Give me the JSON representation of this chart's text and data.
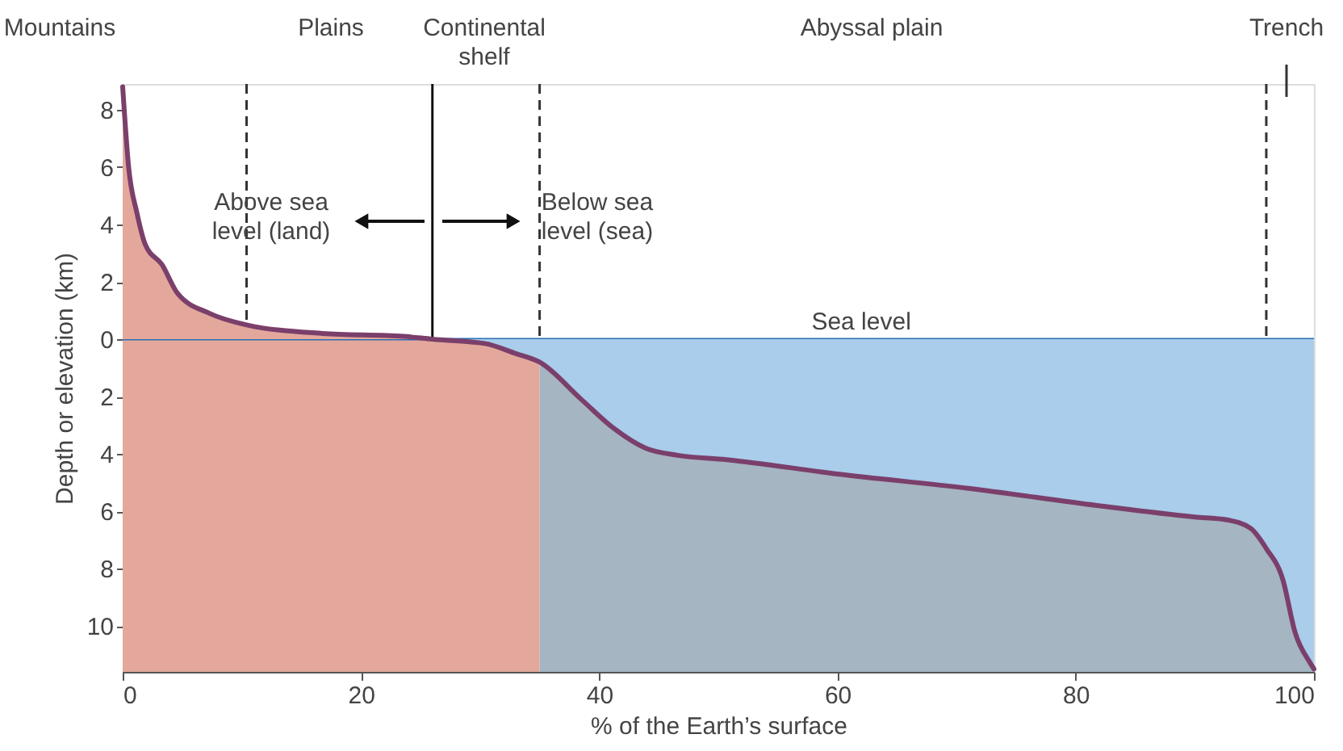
{
  "chart_data": {
    "type": "area",
    "xlabel": "% of the Earth’s surface",
    "ylabel": "Depth or elevation (km)",
    "xlim": [
      0,
      100
    ],
    "xticks": [
      0,
      20,
      40,
      60,
      80,
      100
    ],
    "ylim": [
      -11.6,
      8.9
    ],
    "yticks": [
      8,
      6,
      4,
      2,
      0,
      {
        "value": -2,
        "label": "2"
      },
      {
        "value": -4,
        "label": "4"
      },
      {
        "value": -6,
        "label": "6"
      },
      {
        "value": -8,
        "label": "8"
      },
      {
        "value": -10,
        "label": "10"
      }
    ],
    "grid": false,
    "bands": [
      {
        "axis": "x",
        "from": 0,
        "to": 35,
        "color": "#e3a89b"
      },
      {
        "axis": "x",
        "from": 35,
        "to": 100,
        "color": "#a5b5c2"
      }
    ],
    "series": [
      {
        "type": "area",
        "color": "#e3a89b",
        "x": [
          0,
          0.5,
          1.2,
          1.9,
          3.3,
          4.6,
          7.3,
          10.4,
          16.8,
          23.6,
          26
        ],
        "values": [
          8.8,
          6.0,
          4.4,
          3.3,
          2.6,
          1.6,
          0.9,
          0.5,
          0.2,
          0.1,
          0
        ]
      },
      {
        "type": "area",
        "color": "#a9cdeb",
        "x": [
          26,
          30.4,
          33,
          35,
          38.5,
          41.2,
          43.9,
          46.6,
          50.7,
          60,
          71,
          81.8,
          90,
          92.7,
          94.7,
          96,
          97.4,
          98.4,
          99.7,
          100
        ],
        "values": [
          0,
          -0.15,
          -0.5,
          -0.8,
          -2.1,
          -3.1,
          -3.8,
          -4.05,
          -4.2,
          -4.7,
          -5.2,
          -5.8,
          -6.2,
          -6.3,
          -6.6,
          -7.3,
          -8.4,
          -10.2,
          -11.3,
          -11.5
        ]
      },
      {
        "type": "line",
        "color": "#7b3f6b",
        "x": [
          0,
          0.5,
          1.2,
          1.9,
          3.3,
          4.6,
          7.3,
          10.4,
          16.8,
          23.6,
          26,
          30.4,
          33,
          35,
          38.5,
          41.2,
          43.9,
          46.6,
          50.7,
          60,
          71,
          81.8,
          90,
          92.7,
          94.7,
          96,
          97.4,
          98.4,
          99.7,
          100
        ],
        "values": [
          8.8,
          6.0,
          4.4,
          3.3,
          2.6,
          1.6,
          0.9,
          0.5,
          0.2,
          0.1,
          0,
          -0.15,
          -0.5,
          -0.8,
          -2.1,
          -3.1,
          -3.8,
          -4.05,
          -4.2,
          -4.7,
          -5.2,
          -5.8,
          -6.2,
          -6.3,
          -6.6,
          -7.3,
          -8.4,
          -10.2,
          -11.3,
          -11.5
        ]
      }
    ],
    "ref_lines": [
      {
        "axis": "y",
        "value": 0,
        "label": "Sea level",
        "color": "#2a6db3",
        "line_style": "solid"
      },
      {
        "axis": "x",
        "value": 10.4,
        "color": "#333333",
        "line_style": "dashed"
      },
      {
        "axis": "x",
        "value": 26,
        "color": "#111111",
        "line_style": "solid"
      },
      {
        "axis": "x",
        "value": 35,
        "color": "#333333",
        "line_style": "dashed"
      },
      {
        "axis": "x",
        "value": 96,
        "color": "#333333",
        "line_style": "dashed"
      }
    ],
    "annotations": [
      "Mountains",
      "Plains",
      "Continental shelf",
      "Abyssal plain",
      "Trench",
      "Above sea level (land)",
      "Below sea level (sea)"
    ]
  }
}
